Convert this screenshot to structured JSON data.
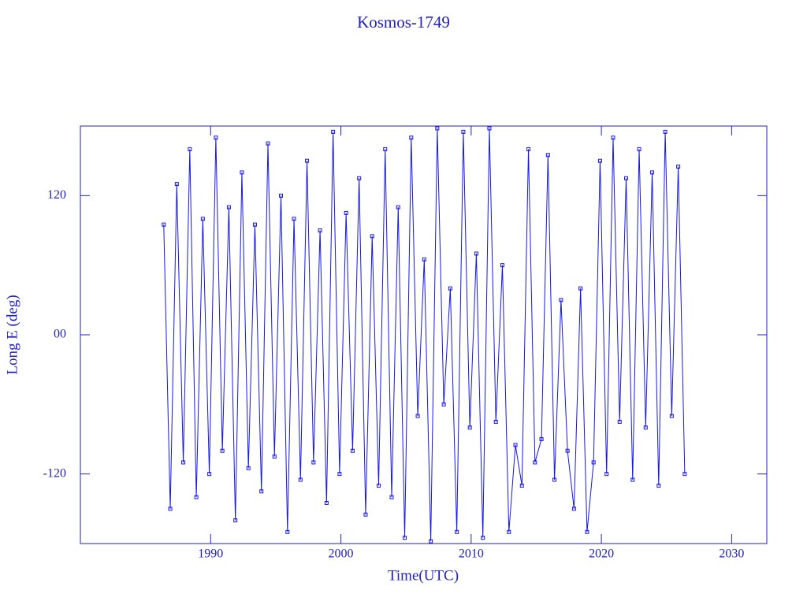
{
  "chart_data": {
    "type": "line",
    "title": "Kosmos-1749",
    "xlabel": "Time(UTC)",
    "ylabel": "Long E (deg)",
    "x": [
      1986.4,
      1986.9,
      1987.4,
      1987.9,
      1988.4,
      1988.9,
      1989.4,
      1989.9,
      1990.4,
      1990.9,
      1991.4,
      1991.9,
      1992.4,
      1992.9,
      1993.4,
      1993.9,
      1994.4,
      1994.9,
      1995.4,
      1995.9,
      1996.4,
      1996.9,
      1997.4,
      1997.9,
      1998.4,
      1998.9,
      1999.4,
      1999.9,
      2000.4,
      2000.9,
      2001.4,
      2001.9,
      2002.4,
      2002.9,
      2003.4,
      2003.9,
      2004.4,
      2004.9,
      2005.4,
      2005.9,
      2006.4,
      2006.9,
      2007.4,
      2007.9,
      2008.4,
      2008.9,
      2009.4,
      2009.9,
      2010.4,
      2010.9,
      2011.4,
      2011.9,
      2012.4,
      2012.9,
      2013.4,
      2013.9,
      2014.4,
      2014.9,
      2015.4,
      2015.9,
      2016.4,
      2016.9,
      2017.4,
      2017.9,
      2018.4,
      2018.9,
      2019.4,
      2019.9,
      2020.4,
      2020.9,
      2021.4,
      2021.9,
      2022.4,
      2022.9,
      2023.4,
      2023.9,
      2024.4,
      2024.9,
      2025.4,
      2025.9,
      2026.4
    ],
    "values": [
      95,
      -150,
      130,
      -110,
      160,
      -140,
      100,
      -120,
      170,
      -100,
      110,
      -160,
      140,
      -115,
      95,
      -135,
      165,
      -105,
      120,
      -170,
      100,
      -125,
      150,
      -110,
      90,
      -145,
      175,
      -120,
      105,
      -100,
      135,
      -155,
      85,
      -130,
      160,
      -140,
      110,
      -175,
      170,
      -70,
      65,
      -178,
      178,
      -60,
      40,
      -170,
      175,
      -80,
      70,
      -175,
      178,
      -75,
      60,
      -170,
      -95,
      -130,
      160,
      -110,
      -90,
      155,
      -125,
      30,
      -100,
      -150,
      40,
      -170,
      -110,
      150,
      -120,
      170,
      -75,
      135,
      -125,
      160,
      -80,
      140,
      -130,
      175,
      -70,
      145,
      -120
    ],
    "color": "#1515f0",
    "xlim": [
      1980,
      2032.7
    ],
    "xticks": [
      1990,
      2000,
      2010,
      2020,
      2030
    ],
    "ylim": [
      -180,
      180
    ],
    "yticks": [
      -120,
      {
        "value": 0,
        "label": "00"
      },
      120
    ]
  }
}
